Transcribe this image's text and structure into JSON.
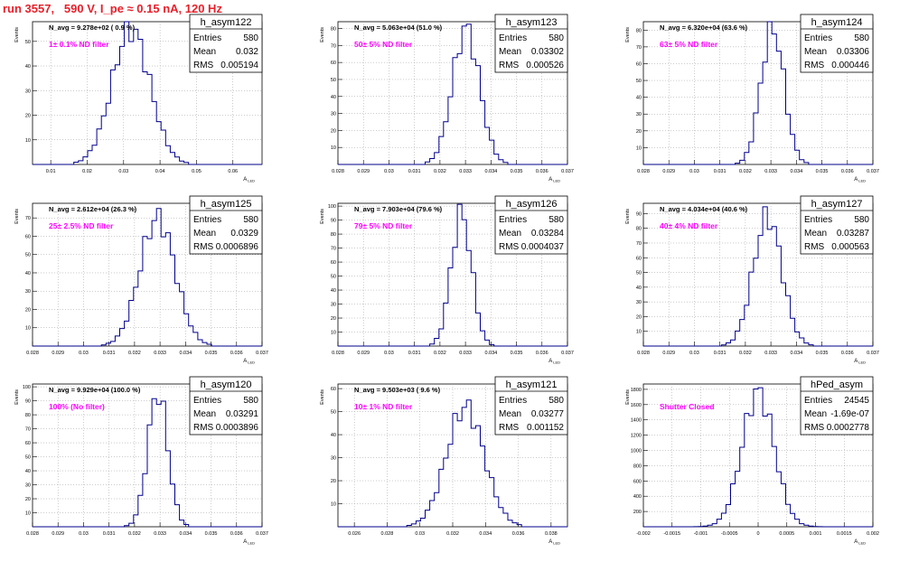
{
  "run_title": "run 3557,   590 V, I_pe ≈ 0.15 nA, 120 Hz",
  "axis_y_label": "Events",
  "axis_x_label_main": "A",
  "axis_x_label_sub": "LED",
  "colors": {
    "title": "#e8202a",
    "annotation": "#ff00ff",
    "histogram": "#00008b",
    "grid": "#999999"
  },
  "stat_labels": {
    "entries": "Entries",
    "mean": "Mean",
    "rms": "RMS"
  },
  "chart_data": [
    {
      "type": "bar",
      "name": "h_asym122",
      "navg": "N_avg = 9.278e+02 ( 0.9 %)",
      "annotation": "1± 0.1% ND filter",
      "entries": "580",
      "mean": "0.032",
      "rms": "0.005194",
      "xlim": [
        0.005,
        0.068
      ],
      "ylim": [
        0,
        58
      ],
      "xticks": [
        0.01,
        0.02,
        0.03,
        0.04,
        0.05,
        0.06
      ],
      "xtick_labels": [
        "0.01",
        "0.02",
        "0.03",
        "0.04",
        "0.05",
        "0.06"
      ],
      "yticks": [
        10,
        20,
        30,
        40,
        50
      ],
      "ytick_labels": [
        "10",
        "20",
        "30",
        "40",
        "50"
      ],
      "mu": 0.032,
      "sigma": 0.0052,
      "peak": 55
    },
    {
      "type": "bar",
      "name": "h_asym123",
      "navg": "N_avg = 5.063e+04 (51.0 %)",
      "annotation": "50± 5% ND filter",
      "entries": "580",
      "mean": "0.03302",
      "rms": "0.000526",
      "xlim": [
        0.028,
        0.037
      ],
      "ylim": [
        0,
        84
      ],
      "xticks": [
        0.028,
        0.029,
        0.03,
        0.031,
        0.032,
        0.033,
        0.034,
        0.035,
        0.036,
        0.037
      ],
      "xtick_labels": [
        "0.028",
        "0.029",
        "0.03",
        "0.031",
        "0.032",
        "0.033",
        "0.034",
        "0.035",
        "0.036",
        "0.037"
      ],
      "yticks": [
        10,
        20,
        30,
        40,
        50,
        60,
        70,
        80
      ],
      "ytick_labels": [
        "10",
        "20",
        "30",
        "40",
        "50",
        "60",
        "70",
        "80"
      ],
      "mu": 0.03302,
      "sigma": 0.00053,
      "peak": 80
    },
    {
      "type": "bar",
      "name": "h_asym124",
      "navg": "N_avg = 6.320e+04 (63.6 %)",
      "annotation": "63± 5% ND filter",
      "entries": "580",
      "mean": "0.03306",
      "rms": "0.000446",
      "xlim": [
        0.028,
        0.037
      ],
      "ylim": [
        0,
        85
      ],
      "xticks": [
        0.028,
        0.029,
        0.03,
        0.031,
        0.032,
        0.033,
        0.034,
        0.035,
        0.036,
        0.037
      ],
      "xtick_labels": [
        "0.028",
        "0.029",
        "0.03",
        "0.031",
        "0.032",
        "0.033",
        "0.034",
        "0.035",
        "0.036",
        "0.037"
      ],
      "yticks": [
        10,
        20,
        30,
        40,
        50,
        60,
        70,
        80
      ],
      "ytick_labels": [
        "10",
        "20",
        "30",
        "40",
        "50",
        "60",
        "70",
        "80"
      ],
      "mu": 0.03306,
      "sigma": 0.00045,
      "peak": 82
    },
    {
      "type": "bar",
      "name": "h_asym125",
      "navg": "N_avg = 2.612e+04 (26.3 %)",
      "annotation": "25± 2.5% ND filter",
      "entries": "580",
      "mean": "0.0329",
      "rms": "0.0006896",
      "xlim": [
        0.028,
        0.037
      ],
      "ylim": [
        0,
        78
      ],
      "xticks": [
        0.028,
        0.029,
        0.03,
        0.031,
        0.032,
        0.033,
        0.034,
        0.035,
        0.036,
        0.037
      ],
      "xtick_labels": [
        "0.028",
        "0.029",
        "0.03",
        "0.031",
        "0.032",
        "0.033",
        "0.034",
        "0.035",
        "0.036",
        "0.037"
      ],
      "yticks": [
        10,
        20,
        30,
        40,
        50,
        60,
        70
      ],
      "ytick_labels": [
        "10",
        "20",
        "30",
        "40",
        "50",
        "60",
        "70"
      ],
      "mu": 0.0329,
      "sigma": 0.00069,
      "peak": 70
    },
    {
      "type": "bar",
      "name": "h_asym126",
      "navg": "N_avg = 7.903e+04 (79.6 %)",
      "annotation": "79± 5% ND filter",
      "entries": "580",
      "mean": "0.03284",
      "rms": "0.0004037",
      "xlim": [
        0.028,
        0.037
      ],
      "ylim": [
        0,
        102
      ],
      "xticks": [
        0.028,
        0.029,
        0.03,
        0.031,
        0.032,
        0.033,
        0.034,
        0.035,
        0.036,
        0.037
      ],
      "xtick_labels": [
        "0.028",
        "0.029",
        "0.03",
        "0.031",
        "0.032",
        "0.033",
        "0.034",
        "0.035",
        "0.036",
        "0.037"
      ],
      "yticks": [
        10,
        20,
        30,
        40,
        50,
        60,
        70,
        80,
        90,
        100
      ],
      "ytick_labels": [
        "10",
        "20",
        "30",
        "40",
        "50",
        "60",
        "70",
        "80",
        "90",
        "100"
      ],
      "mu": 0.03284,
      "sigma": 0.0004,
      "peak": 95
    },
    {
      "type": "bar",
      "name": "h_asym127",
      "navg": "N_avg = 4.034e+04 (40.6 %)",
      "annotation": "40± 4% ND filter",
      "entries": "580",
      "mean": "0.03287",
      "rms": "0.000563",
      "xlim": [
        0.028,
        0.037
      ],
      "ylim": [
        0,
        97
      ],
      "xticks": [
        0.028,
        0.029,
        0.03,
        0.031,
        0.032,
        0.033,
        0.034,
        0.035,
        0.036,
        0.037
      ],
      "xtick_labels": [
        "0.028",
        "0.029",
        "0.03",
        "0.031",
        "0.032",
        "0.033",
        "0.034",
        "0.035",
        "0.036",
        "0.037"
      ],
      "yticks": [
        10,
        20,
        30,
        40,
        50,
        60,
        70,
        80,
        90
      ],
      "ytick_labels": [
        "10",
        "20",
        "30",
        "40",
        "50",
        "60",
        "70",
        "80",
        "90"
      ],
      "mu": 0.03287,
      "sigma": 0.00056,
      "peak": 88
    },
    {
      "type": "bar",
      "name": "h_asym120",
      "navg": "N_avg = 9.929e+04 (100.0 %)",
      "annotation": "100% (No filter)",
      "entries": "580",
      "mean": "0.03291",
      "rms": "0.0003896",
      "xlim": [
        0.028,
        0.037
      ],
      "ylim": [
        0,
        102
      ],
      "xticks": [
        0.028,
        0.029,
        0.03,
        0.031,
        0.032,
        0.033,
        0.034,
        0.035,
        0.036,
        0.037
      ],
      "xtick_labels": [
        "0.028",
        "0.029",
        "0.03",
        "0.031",
        "0.032",
        "0.033",
        "0.034",
        "0.035",
        "0.036",
        "0.037"
      ],
      "yticks": [
        10,
        20,
        30,
        40,
        50,
        60,
        70,
        80,
        90,
        100
      ],
      "ytick_labels": [
        "10",
        "20",
        "30",
        "40",
        "50",
        "60",
        "70",
        "80",
        "90",
        "100"
      ],
      "mu": 0.03291,
      "sigma": 0.00039,
      "peak": 96
    },
    {
      "type": "bar",
      "name": "h_asym121",
      "navg": "N_avg = 9.503e+03 ( 9.6 %)",
      "annotation": "10± 1% ND filter",
      "entries": "580",
      "mean": "0.03277",
      "rms": "0.001152",
      "xlim": [
        0.025,
        0.039
      ],
      "ylim": [
        0,
        62
      ],
      "xticks": [
        0.026,
        0.028,
        0.03,
        0.032,
        0.034,
        0.036,
        0.038
      ],
      "xtick_labels": [
        "0.026",
        "0.028",
        "0.03",
        "0.032",
        "0.034",
        "0.036",
        "0.038"
      ],
      "yticks": [
        10,
        20,
        30,
        40,
        50,
        60
      ],
      "ytick_labels": [
        "10",
        "20",
        "30",
        "40",
        "50",
        "60"
      ],
      "mu": 0.03277,
      "sigma": 0.00115,
      "peak": 52
    },
    {
      "type": "bar",
      "name": "hPed_asym",
      "navg": "",
      "annotation": "Shutter Closed",
      "entries": "24545",
      "mean": "-1.69e-07",
      "rms": "0.0002778",
      "xlim": [
        -0.002,
        0.002
      ],
      "ylim": [
        0,
        1870
      ],
      "xticks": [
        -0.002,
        -0.0015,
        -0.001,
        -0.0005,
        0,
        0.0005,
        0.001,
        0.0015,
        0.002
      ],
      "xtick_labels": [
        "-0.002",
        "-0.0015",
        "-0.001",
        "-0.0005",
        "0",
        "0.0005",
        "0.001",
        "0.0015",
        "0.002"
      ],
      "yticks": [
        200,
        400,
        600,
        800,
        1000,
        1200,
        1400,
        1600,
        1800
      ],
      "ytick_labels": [
        "200",
        "400",
        "600",
        "800",
        "1000",
        "1200",
        "1400",
        "1600",
        "1800"
      ],
      "mu": 0,
      "sigma": 0.00028,
      "peak": 1760
    }
  ]
}
